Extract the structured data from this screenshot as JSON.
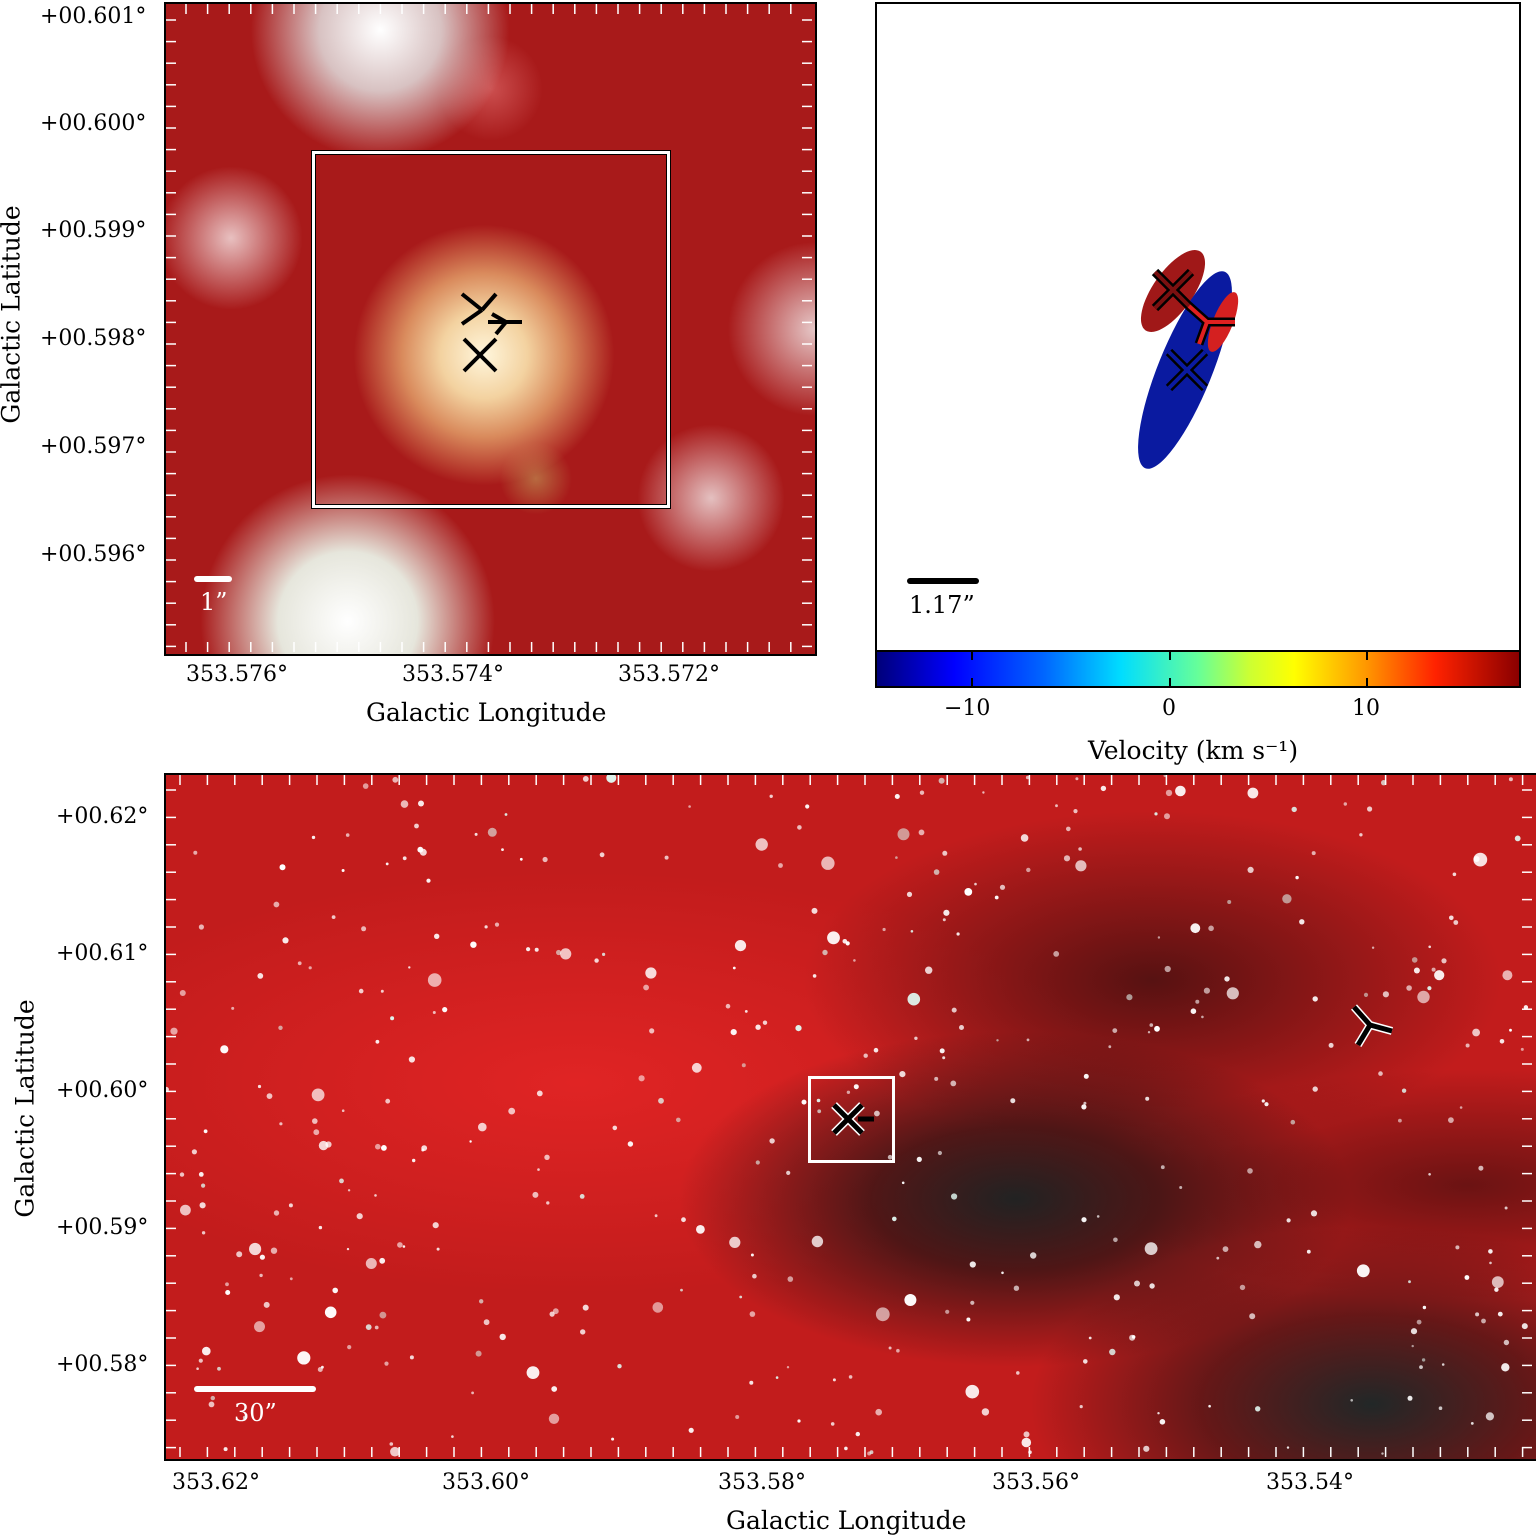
{
  "top_left": {
    "ylabel": "Galactic Latitude",
    "xlabel": "Galactic Longitude",
    "yticks": [
      "+00.601°",
      "+00.600°",
      "+00.599°",
      "+00.598°",
      "+00.597°",
      "+00.596°"
    ],
    "xticks": [
      "353.576°",
      "353.574°",
      "353.572°"
    ],
    "scalebar_label": "1”",
    "colors": {
      "background": "#a81a1a",
      "source_core": "#fff3d8",
      "box": "#ffffff"
    }
  },
  "top_right": {
    "scalebar_label": "1.17”",
    "colorbar": {
      "label": "Velocity (km s⁻¹)",
      "ticks": [
        "−10",
        "0",
        "10"
      ],
      "range": [
        -15,
        17.5
      ],
      "tick_values": [
        -10,
        0,
        10
      ]
    },
    "colors": {
      "red_lobe": "#a01818",
      "blue_lobe": "#0a1aa0",
      "marker": "#000000"
    }
  },
  "bottom": {
    "ylabel": "Galactic Latitude",
    "xlabel": "Galactic Longitude",
    "yticks": [
      "+00.62°",
      "+00.61°",
      "+00.60°",
      "+00.59°",
      "+00.58°"
    ],
    "xticks": [
      "353.62°",
      "353.60°",
      "353.58°",
      "353.56°",
      "353.54°"
    ],
    "scalebar_label": "30”",
    "colors": {
      "background": "#c21c1c",
      "dark_cloud": "#2a0e0e",
      "stars": "#ffffff"
    }
  }
}
